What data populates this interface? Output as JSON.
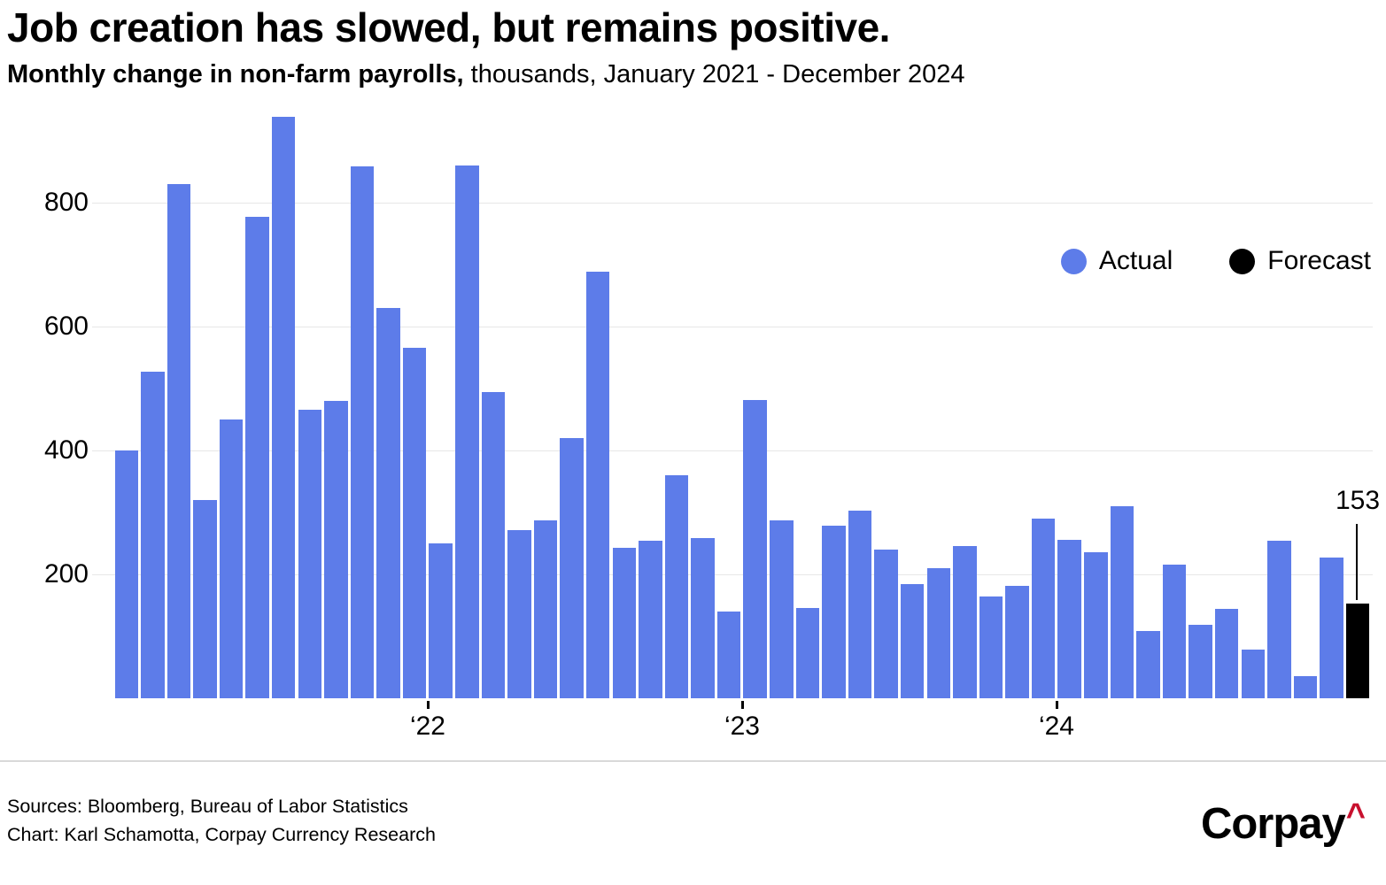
{
  "header": {
    "title": "Job creation has slowed, but remains positive.",
    "subtitle_bold": "Monthly change in non-farm payrolls,",
    "subtitle_rest": " thousands, January 2021 - December 2024"
  },
  "chart_data": {
    "type": "bar",
    "title": "Job creation has slowed, but remains positive.",
    "subtitle": "Monthly change in non-farm payrolls, thousands, January 2021 - December 2024",
    "xlabel": "",
    "ylabel": "thousands",
    "ylim": [
      0,
      960
    ],
    "grid": true,
    "y_ticks": [
      800,
      600,
      400,
      200
    ],
    "x_ticks": [
      {
        "label": "‘22",
        "index": 12
      },
      {
        "label": "‘23",
        "index": 24
      },
      {
        "label": "‘24",
        "index": 36
      }
    ],
    "colors": {
      "actual": "#5d7ce9",
      "forecast": "#000000"
    },
    "legend": [
      {
        "label": "Actual",
        "color": "#5d7ce9"
      },
      {
        "label": "Forecast",
        "color": "#000000"
      }
    ],
    "annotation": {
      "text": "153",
      "index": 47
    },
    "points": [
      {
        "label": "Jan 2021",
        "value": 400,
        "kind": "actual"
      },
      {
        "label": "Feb 2021",
        "value": 527,
        "kind": "actual"
      },
      {
        "label": "Mar 2021",
        "value": 830,
        "kind": "actual"
      },
      {
        "label": "Apr 2021",
        "value": 320,
        "kind": "actual"
      },
      {
        "label": "May 2021",
        "value": 450,
        "kind": "actual"
      },
      {
        "label": "Jun 2021",
        "value": 777,
        "kind": "actual"
      },
      {
        "label": "Jul 2021",
        "value": 939,
        "kind": "actual"
      },
      {
        "label": "Aug 2021",
        "value": 466,
        "kind": "actual"
      },
      {
        "label": "Sep 2021",
        "value": 480,
        "kind": "actual"
      },
      {
        "label": "Oct 2021",
        "value": 858,
        "kind": "actual"
      },
      {
        "label": "Nov 2021",
        "value": 630,
        "kind": "actual"
      },
      {
        "label": "Dec 2021",
        "value": 566,
        "kind": "actual"
      },
      {
        "label": "Jan 2022",
        "value": 250,
        "kind": "actual"
      },
      {
        "label": "Feb 2022",
        "value": 860,
        "kind": "actual"
      },
      {
        "label": "Mar 2022",
        "value": 494,
        "kind": "actual"
      },
      {
        "label": "Apr 2022",
        "value": 272,
        "kind": "actual"
      },
      {
        "label": "May 2022",
        "value": 287,
        "kind": "actual"
      },
      {
        "label": "Jun 2022",
        "value": 420,
        "kind": "actual"
      },
      {
        "label": "Jul 2022",
        "value": 689,
        "kind": "actual"
      },
      {
        "label": "Aug 2022",
        "value": 243,
        "kind": "actual"
      },
      {
        "label": "Sep 2022",
        "value": 255,
        "kind": "actual"
      },
      {
        "label": "Oct 2022",
        "value": 360,
        "kind": "actual"
      },
      {
        "label": "Nov 2022",
        "value": 258,
        "kind": "actual"
      },
      {
        "label": "Dec 2022",
        "value": 140,
        "kind": "actual"
      },
      {
        "label": "Jan 2023",
        "value": 482,
        "kind": "actual"
      },
      {
        "label": "Feb 2023",
        "value": 287,
        "kind": "actual"
      },
      {
        "label": "Mar 2023",
        "value": 146,
        "kind": "actual"
      },
      {
        "label": "Apr 2023",
        "value": 278,
        "kind": "actual"
      },
      {
        "label": "May 2023",
        "value": 303,
        "kind": "actual"
      },
      {
        "label": "Jun 2023",
        "value": 240,
        "kind": "actual"
      },
      {
        "label": "Jul 2023",
        "value": 184,
        "kind": "actual"
      },
      {
        "label": "Aug 2023",
        "value": 210,
        "kind": "actual"
      },
      {
        "label": "Sep 2023",
        "value": 246,
        "kind": "actual"
      },
      {
        "label": "Oct 2023",
        "value": 165,
        "kind": "actual"
      },
      {
        "label": "Nov 2023",
        "value": 182,
        "kind": "actual"
      },
      {
        "label": "Dec 2023",
        "value": 290,
        "kind": "actual"
      },
      {
        "label": "Jan 2024",
        "value": 256,
        "kind": "actual"
      },
      {
        "label": "Feb 2024",
        "value": 236,
        "kind": "actual"
      },
      {
        "label": "Mar 2024",
        "value": 310,
        "kind": "actual"
      },
      {
        "label": "Apr 2024",
        "value": 108,
        "kind": "actual"
      },
      {
        "label": "May 2024",
        "value": 216,
        "kind": "actual"
      },
      {
        "label": "Jun 2024",
        "value": 118,
        "kind": "actual"
      },
      {
        "label": "Jul 2024",
        "value": 144,
        "kind": "actual"
      },
      {
        "label": "Aug 2024",
        "value": 78,
        "kind": "actual"
      },
      {
        "label": "Sep 2024",
        "value": 255,
        "kind": "actual"
      },
      {
        "label": "Oct 2024",
        "value": 36,
        "kind": "actual"
      },
      {
        "label": "Nov 2024",
        "value": 227,
        "kind": "actual"
      },
      {
        "label": "Dec 2024",
        "value": 153,
        "kind": "forecast"
      }
    ]
  },
  "footer": {
    "sources": "Sources: Bloomberg, Bureau of Labor Statistics",
    "chart_credit": "Chart: Karl Schamotta, Corpay Currency Research",
    "logo_text": "Corpay",
    "logo_caret": "^",
    "logo_caret_color": "#c8102e"
  }
}
